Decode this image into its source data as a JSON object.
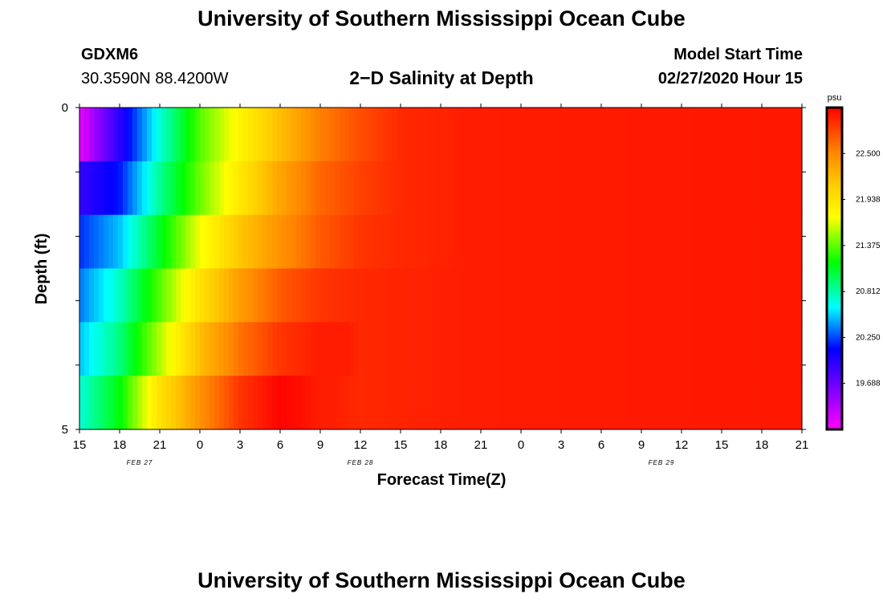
{
  "page": {
    "title_top": "University of Southern Mississippi Ocean Cube",
    "title_bottom": "University of Southern Mississippi Ocean Cube",
    "station_id": "GDXM6",
    "coords": "30.3590N 88.4200W",
    "plot_title": "2−D Salinity at Depth",
    "model_label": "Model Start Time",
    "model_time": "02/27/2020 Hour 15"
  },
  "chart_data": {
    "type": "heatmap",
    "title": "2−D Salinity at Depth",
    "xlabel": "Forecast Time(Z)",
    "ylabel": "Depth (ft)",
    "x_tick_labels": [
      "15",
      "18",
      "21",
      "0",
      "3",
      "6",
      "9",
      "12",
      "15",
      "18",
      "21",
      "0",
      "3",
      "6",
      "9",
      "12",
      "15",
      "18",
      "21"
    ],
    "date_labels": [
      {
        "text": "FEB 27",
        "tick_index": 1.5
      },
      {
        "text": "FEB 28",
        "tick_index": 7
      },
      {
        "text": "FEB 29",
        "tick_index": 14.5
      }
    ],
    "y_range": [
      0,
      5
    ],
    "y_tick_labels": [
      "0",
      "5"
    ],
    "y_minor_ticks": [
      1,
      2,
      3,
      4
    ],
    "x_range_hours": [
      0,
      54
    ],
    "colorbar": {
      "unit": "psu",
      "min": 19.125,
      "max": 23.0625,
      "labels": [
        "22.500",
        "21.938",
        "21.375",
        "20.812",
        "20.250",
        "19.688"
      ],
      "label_values": [
        22.5,
        21.938,
        21.375,
        20.812,
        20.25,
        19.688
      ]
    },
    "rows": [
      {
        "depth": "0-1",
        "points": [
          [
            0,
            19.2
          ],
          [
            3,
            19.95
          ],
          [
            6,
            20.7
          ],
          [
            9,
            21.35
          ],
          [
            12,
            21.8
          ],
          [
            15,
            22.2
          ],
          [
            18,
            22.55
          ],
          [
            21,
            22.75
          ],
          [
            24,
            22.9
          ],
          [
            30,
            22.95
          ],
          [
            54,
            22.97
          ]
        ]
      },
      {
        "depth": "1-2",
        "points": [
          [
            0,
            19.9
          ],
          [
            3,
            20.15
          ],
          [
            6,
            20.85
          ],
          [
            9,
            21.4
          ],
          [
            12,
            21.9
          ],
          [
            15,
            22.35
          ],
          [
            18,
            22.65
          ],
          [
            21,
            22.8
          ],
          [
            24,
            22.9
          ],
          [
            30,
            22.95
          ],
          [
            54,
            22.97
          ]
        ]
      },
      {
        "depth": "2-3",
        "points": [
          [
            0,
            20.2
          ],
          [
            3,
            20.5
          ],
          [
            6,
            21.1
          ],
          [
            9,
            21.7
          ],
          [
            12,
            22.15
          ],
          [
            15,
            22.45
          ],
          [
            18,
            22.7
          ],
          [
            21,
            22.85
          ],
          [
            24,
            22.9
          ],
          [
            30,
            22.95
          ],
          [
            54,
            22.97
          ]
        ]
      },
      {
        "depth": "3-4",
        "points": [
          [
            0,
            20.35
          ],
          [
            3,
            20.75
          ],
          [
            6,
            21.35
          ],
          [
            9,
            21.95
          ],
          [
            12,
            22.4
          ],
          [
            15,
            22.7
          ],
          [
            18,
            22.85
          ],
          [
            21,
            22.9
          ],
          [
            24,
            22.92
          ],
          [
            30,
            22.95
          ],
          [
            54,
            22.97
          ]
        ]
      },
      {
        "depth": "4-5",
        "points": [
          [
            0,
            20.5
          ],
          [
            3,
            20.9
          ],
          [
            6,
            21.55
          ],
          [
            9,
            22.2
          ],
          [
            12,
            22.6
          ],
          [
            15,
            22.85
          ],
          [
            18,
            22.95
          ],
          [
            20,
            22.95
          ],
          [
            21,
            22.9
          ],
          [
            24,
            22.92
          ],
          [
            30,
            22.95
          ],
          [
            54,
            22.97
          ]
        ]
      },
      {
        "depth": "5",
        "points": [
          [
            0,
            20.7
          ],
          [
            3,
            21.15
          ],
          [
            6,
            21.95
          ],
          [
            9,
            22.45
          ],
          [
            12,
            22.85
          ],
          [
            15,
            23.05
          ],
          [
            18,
            22.95
          ],
          [
            20,
            22.92
          ],
          [
            21,
            22.9
          ],
          [
            24,
            22.92
          ],
          [
            30,
            22.95
          ],
          [
            54,
            22.97
          ]
        ]
      }
    ]
  }
}
